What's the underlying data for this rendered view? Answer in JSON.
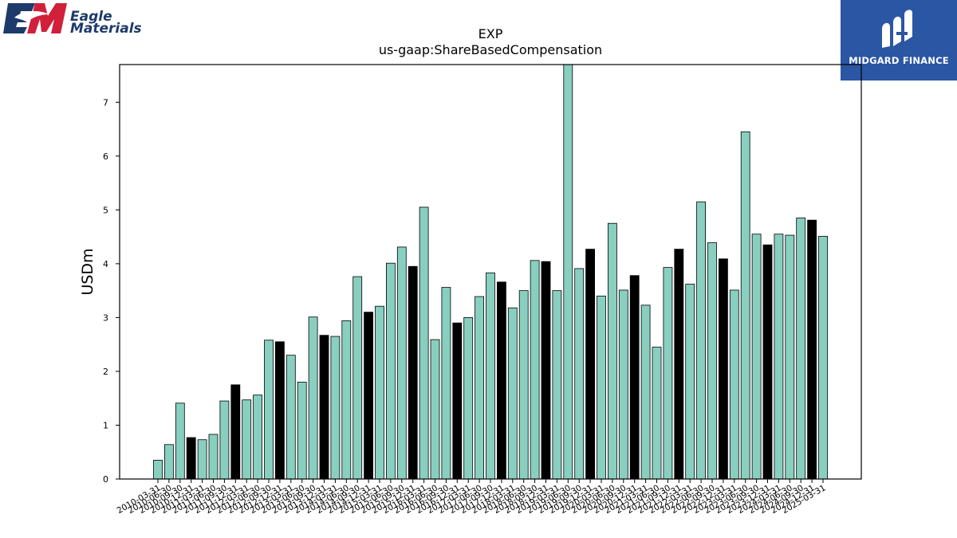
{
  "logos": {
    "left_line1": "Eagle",
    "left_line2": "Materials",
    "right_text": "MIDGARD FINANCE"
  },
  "colors": {
    "bar_regular": "#88cfc0",
    "bar_q4": "#000000",
    "brand_red": "#d0203a",
    "brand_navy": "#1d3a6b",
    "midgard_blue": "#2b56a4"
  },
  "chart_data": {
    "type": "bar",
    "title": "EXP",
    "subtitle": "us-gaap:ShareBasedCompensation",
    "ylabel": "USDm",
    "xlabel": "",
    "ylim": [
      0,
      7.7
    ],
    "yticks": [
      0,
      1,
      2,
      3,
      4,
      5,
      6,
      7
    ],
    "grid": false,
    "legend": "none",
    "categories": [
      "2010-03-31",
      "2010-06-30",
      "2010-09-30",
      "2010-12-31",
      "2011-03-31",
      "2011-06-30",
      "2011-09-30",
      "2011-12-31",
      "2012-03-31",
      "2012-06-30",
      "2012-09-30",
      "2012-12-31",
      "2013-03-31",
      "2013-06-30",
      "2013-09-30",
      "2013-12-31",
      "2014-03-31",
      "2014-06-30",
      "2014-09-30",
      "2014-12-31",
      "2015-03-31",
      "2015-06-30",
      "2015-09-30",
      "2015-12-31",
      "2016-03-31",
      "2016-06-30",
      "2016-09-30",
      "2016-12-31",
      "2017-03-31",
      "2017-06-30",
      "2017-09-30",
      "2017-12-31",
      "2018-03-31",
      "2018-06-30",
      "2018-09-30",
      "2018-12-31",
      "2019-03-31",
      "2019-06-30",
      "2019-09-30",
      "2019-12-31",
      "2020-03-31",
      "2020-06-30",
      "2020-09-30",
      "2020-12-31",
      "2021-03-31",
      "2021-06-30",
      "2021-09-30",
      "2021-12-31",
      "2022-03-31",
      "2022-06-30",
      "2022-09-30",
      "2022-12-31",
      "2023-03-31",
      "2023-06-30",
      "2023-09-30",
      "2023-12-31",
      "2024-03-31",
      "2024-06-30",
      "2024-09-30",
      "2024-12-31",
      "2025-03-31"
    ],
    "xtick_labels": [
      "2010-03-31",
      "2010-06-30",
      "2010-09-30",
      "2010-12-31",
      "2011-03-31",
      "2011-06-30",
      "2011-09-30",
      "2011-12-31",
      "2012-03-31",
      "2012-06-30",
      "2012-09-30",
      "2012-12-31",
      "2013-03-31",
      "2013-06-30",
      "2013-09-30",
      "2013-12-31",
      "2014-03-31",
      "2014-06-30",
      "2014-09-30",
      "2014-12-31",
      "2015-03-31",
      "2015-06-30",
      "2015-09-30",
      "2015-12-31",
      "2016-03-31",
      "2016-06-30",
      "2016-09-30",
      "2016-12-31",
      "2017-03-31",
      "2017-06-30",
      "2017-09-30",
      "2017-12-31",
      "2018-03-31",
      "2018-06-30",
      "2018-09-30",
      "2018-12-31",
      "2019-03-31",
      "2019-06-30",
      "2019-09-30",
      "2019-12-31",
      "2020-03-31",
      "2020-06-30",
      "2020-09-30",
      "2020-12-31",
      "2021-03-31",
      "2021-06-30",
      "2021-09-30",
      "2021-12-31",
      "2022-03-31",
      "2022-06-30",
      "2022-09-30",
      "2022-12-31",
      "2023-03-31",
      "2023-06-30",
      "2023-09-30",
      "2023-12-31",
      "2024-03-31",
      "2024-06-30",
      "2024-09-30",
      "2024-12-31",
      "2025-03-31"
    ],
    "values": [
      0.35,
      0.64,
      1.41,
      0.77,
      0.73,
      0.83,
      1.45,
      1.75,
      1.47,
      1.56,
      2.58,
      2.55,
      2.3,
      1.8,
      3.01,
      2.67,
      2.65,
      2.94,
      3.76,
      3.1,
      3.21,
      4.01,
      4.31,
      3.95,
      5.05,
      2.59,
      3.56,
      2.9,
      3.0,
      3.39,
      3.83,
      3.66,
      3.18,
      3.5,
      4.06,
      4.04,
      3.5,
      7.7,
      3.91,
      4.27,
      3.4,
      4.75,
      3.51,
      3.78,
      3.23,
      2.45,
      3.93,
      4.27,
      3.62,
      5.15,
      4.39,
      4.09,
      3.51,
      6.45,
      4.55,
      4.35,
      4.55,
      4.53,
      4.85,
      4.81,
      4.51
    ],
    "highlight_every": 4,
    "highlight_offset": 3
  }
}
